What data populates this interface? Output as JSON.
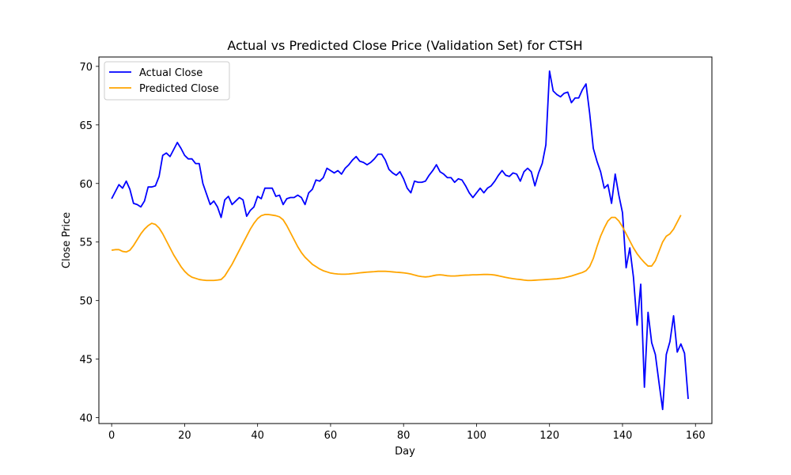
{
  "chart_data": {
    "type": "line",
    "title": "Actual vs Predicted Close Price (Validation Set) for CTSH",
    "xlabel": "Day",
    "ylabel": "Close Price",
    "xlim": [
      -3.5,
      164.5
    ],
    "ylim": [
      39.5,
      70.8
    ],
    "xticks": [
      0,
      20,
      40,
      60,
      80,
      100,
      120,
      140,
      160
    ],
    "yticks": [
      40,
      45,
      50,
      55,
      60,
      65,
      70
    ],
    "grid": false,
    "legend_position": "upper-left",
    "series": [
      {
        "name": "Actual Close",
        "color": "#0000ff",
        "values": [
          58.7,
          59.3,
          59.9,
          59.6,
          60.2,
          59.5,
          58.3,
          58.2,
          58.0,
          58.5,
          59.7,
          59.7,
          59.8,
          60.6,
          62.4,
          62.6,
          62.3,
          62.9,
          63.5,
          63.0,
          62.4,
          62.1,
          62.1,
          61.7,
          61.7,
          60.0,
          59.1,
          58.2,
          58.5,
          58.0,
          57.1,
          58.6,
          58.9,
          58.2,
          58.5,
          58.8,
          58.6,
          57.2,
          57.7,
          58.0,
          58.9,
          58.7,
          59.6,
          59.6,
          59.6,
          58.9,
          59.0,
          58.2,
          58.7,
          58.8,
          58.8,
          59.0,
          58.8,
          58.2,
          59.2,
          59.5,
          60.3,
          60.2,
          60.5,
          61.3,
          61.1,
          60.9,
          61.1,
          60.8,
          61.3,
          61.6,
          62.0,
          62.3,
          61.9,
          61.8,
          61.6,
          61.8,
          62.1,
          62.5,
          62.5,
          62.0,
          61.2,
          60.9,
          60.7,
          61.0,
          60.4,
          59.6,
          59.2,
          60.2,
          60.1,
          60.1,
          60.2,
          60.7,
          61.1,
          61.6,
          61.0,
          60.8,
          60.5,
          60.5,
          60.1,
          60.4,
          60.3,
          59.8,
          59.2,
          58.8,
          59.2,
          59.6,
          59.2,
          59.6,
          59.8,
          60.2,
          60.7,
          61.1,
          60.7,
          60.6,
          60.9,
          60.8,
          60.2,
          61.0,
          61.3,
          61.0,
          59.8,
          60.9,
          61.7,
          63.3,
          69.6,
          67.9,
          67.6,
          67.4,
          67.7,
          67.8,
          66.9,
          67.3,
          67.3,
          68.0,
          68.5,
          66.0,
          63.0,
          61.9,
          61.0,
          59.6,
          59.9,
          58.3,
          60.8,
          59.0,
          57.5,
          52.8,
          54.5,
          52.0,
          47.9,
          51.4,
          42.6,
          49.0,
          46.4,
          45.4,
          43.0,
          40.7,
          45.4,
          46.5,
          48.7,
          45.6,
          46.3,
          45.5,
          41.6
        ]
      },
      {
        "name": "Predicted Close",
        "color": "#ffa500",
        "values": [
          54.3,
          54.35,
          54.35,
          54.2,
          54.15,
          54.3,
          54.7,
          55.2,
          55.7,
          56.1,
          56.4,
          56.6,
          56.5,
          56.2,
          55.7,
          55.1,
          54.5,
          53.9,
          53.4,
          52.9,
          52.5,
          52.2,
          52.0,
          51.9,
          51.8,
          51.75,
          51.72,
          51.72,
          51.72,
          51.75,
          51.8,
          52.1,
          52.6,
          53.1,
          53.7,
          54.3,
          54.9,
          55.5,
          56.1,
          56.6,
          57.0,
          57.25,
          57.35,
          57.35,
          57.3,
          57.25,
          57.15,
          56.9,
          56.4,
          55.8,
          55.2,
          54.6,
          54.1,
          53.7,
          53.4,
          53.1,
          52.9,
          52.7,
          52.55,
          52.45,
          52.35,
          52.3,
          52.27,
          52.25,
          52.25,
          52.27,
          52.3,
          52.33,
          52.37,
          52.4,
          52.43,
          52.45,
          52.47,
          52.5,
          52.5,
          52.5,
          52.48,
          52.45,
          52.42,
          52.4,
          52.37,
          52.33,
          52.27,
          52.18,
          52.1,
          52.05,
          52.02,
          52.05,
          52.12,
          52.18,
          52.2,
          52.17,
          52.12,
          52.1,
          52.1,
          52.12,
          52.15,
          52.17,
          52.18,
          52.2,
          52.2,
          52.22,
          52.23,
          52.23,
          52.22,
          52.18,
          52.12,
          52.05,
          51.98,
          51.92,
          51.87,
          51.83,
          51.8,
          51.75,
          51.72,
          51.72,
          51.74,
          51.76,
          51.78,
          51.8,
          51.82,
          51.84,
          51.86,
          51.9,
          51.95,
          52.02,
          52.1,
          52.2,
          52.3,
          52.4,
          52.55,
          52.9,
          53.6,
          54.6,
          55.5,
          56.2,
          56.8,
          57.1,
          57.1,
          56.8,
          56.3,
          55.7,
          55.1,
          54.5,
          54.0,
          53.6,
          53.25,
          52.95,
          52.95,
          53.4,
          54.2,
          55.0,
          55.5,
          55.7,
          56.1,
          56.7,
          57.3
        ]
      }
    ]
  }
}
